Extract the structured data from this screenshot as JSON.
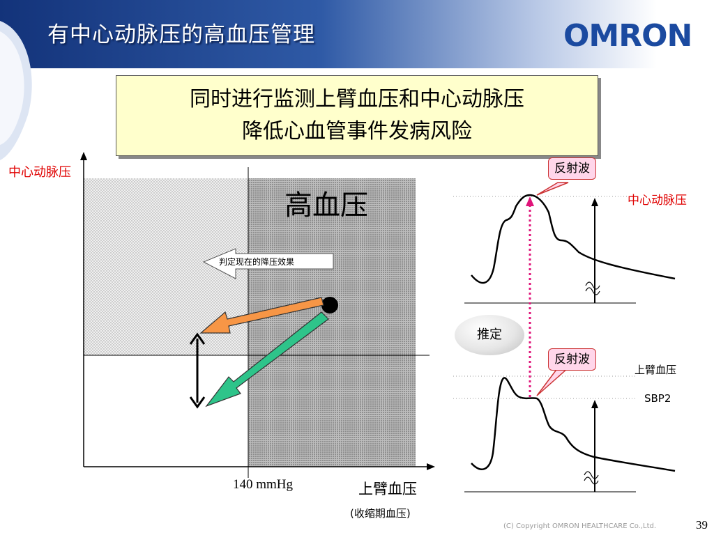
{
  "header": {
    "title": "有中心动脉压的高血压管理",
    "logo": "OMRON"
  },
  "callout": {
    "line1": "同时进行监测上臂血压和中心动脉压",
    "line2": "降低心血管事件发病风险"
  },
  "chart": {
    "y_axis_label": "中心动脉压",
    "x_axis_label": "上臂血压",
    "x_axis_sublabel": "(收缩期血压)",
    "threshold_label": "140 mmHg",
    "zone_label": "高血压",
    "arrow_note": "判定现在的降压效果"
  },
  "waveforms": {
    "top_bubble": "反射波",
    "top_label": "中心动脉压",
    "estimate": "推定",
    "bottom_bubble": "反射波",
    "bottom_label": "上臂血压",
    "sbp_label": "SBP2"
  },
  "footer": {
    "copyright": "(C) Copyright OMRON HEALTHCARE Co.,Ltd.",
    "page": "39"
  }
}
